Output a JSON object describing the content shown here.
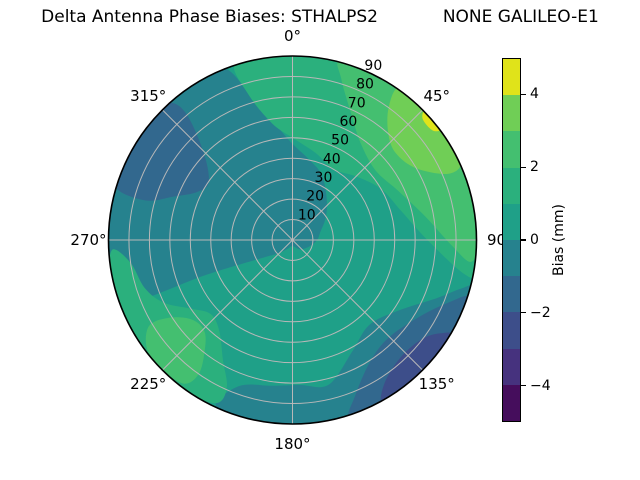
{
  "title": "Delta Antenna Phase Biases: STHALPS2            NONE GALILEO-E1",
  "chart_data": {
    "type": "polar_contour",
    "title": "Delta Antenna Phase Biases: STHALPS2            NONE GALILEO-E1",
    "theta_labels": [
      "0°",
      "45°",
      "90",
      "135°",
      "180°",
      "225°",
      "270°",
      "315°"
    ],
    "theta_degrees": [
      0,
      45,
      90,
      135,
      180,
      225,
      270,
      315
    ],
    "r_tick_labels": [
      "10",
      "20",
      "30",
      "40",
      "50",
      "60",
      "70",
      "80",
      "90"
    ],
    "r_ticks": [
      10,
      20,
      30,
      40,
      50,
      60,
      70,
      80,
      90
    ],
    "r_max": 90,
    "radial_label_angle_deg": 24,
    "grid": true,
    "grid_color": "#b8b8b8",
    "colorbar": {
      "label": "Bias (mm)",
      "range": [
        -5,
        5
      ],
      "ticks": [
        4,
        2,
        0,
        -2,
        -4
      ],
      "tick_labels": [
        "4",
        "2",
        "0",
        "−2",
        "−4"
      ],
      "position": "right"
    },
    "bins": [
      {
        "range": [
          -5,
          -4
        ],
        "color": "#450d5c"
      },
      {
        "range": [
          -4,
          -3
        ],
        "color": "#46327e"
      },
      {
        "range": [
          -3,
          -2
        ],
        "color": "#3d4e8a"
      },
      {
        "range": [
          -2,
          -1
        ],
        "color": "#32688e"
      },
      {
        "range": [
          -1,
          0
        ],
        "color": "#26828e"
      },
      {
        "range": [
          0,
          1
        ],
        "color": "#1fa088"
      },
      {
        "range": [
          1,
          2
        ],
        "color": "#2bb07d"
      },
      {
        "range": [
          2,
          3
        ],
        "color": "#44bf70"
      },
      {
        "range": [
          3,
          4
        ],
        "color": "#70ce56"
      },
      {
        "range": [
          4,
          5
        ],
        "color": "#e0e31a"
      }
    ],
    "base_bin": 5,
    "regions": [
      {
        "bin": 4,
        "value_range_mm": "-1 to 0",
        "points": [
          [
            250,
            91
          ],
          [
            265,
            91
          ],
          [
            280,
            91
          ],
          [
            295,
            91
          ],
          [
            310,
            91
          ],
          [
            325,
            91
          ],
          [
            338,
            91
          ],
          [
            345,
            70
          ],
          [
            353,
            55
          ],
          [
            0,
            47
          ],
          [
            12,
            40
          ],
          [
            24,
            35
          ],
          [
            38,
            27
          ],
          [
            55,
            20
          ],
          [
            75,
            14
          ],
          [
            90,
            12
          ],
          [
            110,
            9
          ],
          [
            140,
            6
          ],
          [
            180,
            3
          ],
          [
            210,
            5
          ],
          [
            228,
            10
          ],
          [
            240,
            18
          ],
          [
            248,
            45
          ]
        ]
      },
      {
        "bin": 4,
        "value_range_mm": "-1 to 0",
        "points": [
          [
            105,
            91
          ],
          [
            118,
            91
          ],
          [
            131,
            91
          ],
          [
            144,
            91
          ],
          [
            157,
            91
          ],
          [
            170,
            91
          ],
          [
            183,
            91
          ],
          [
            196,
            91
          ],
          [
            205,
            89
          ],
          [
            200,
            76
          ],
          [
            188,
            72
          ],
          [
            177,
            71
          ],
          [
            166,
            73
          ],
          [
            152,
            62
          ],
          [
            138,
            56
          ],
          [
            124,
            62
          ],
          [
            112,
            76
          ],
          [
            106,
            86
          ]
        ]
      },
      {
        "bin": 3,
        "value_range_mm": "-2 to -1",
        "points": [
          [
            108,
            91
          ],
          [
            120,
            91
          ],
          [
            135,
            91
          ],
          [
            150,
            91
          ],
          [
            162,
            91
          ],
          [
            158,
            82
          ],
          [
            148,
            71
          ],
          [
            136,
            67
          ],
          [
            122,
            72
          ],
          [
            112,
            82
          ]
        ]
      },
      {
        "bin": 2,
        "value_range_mm": "-3 to -2",
        "points": [
          [
            121,
            91
          ],
          [
            131,
            91
          ],
          [
            141,
            91
          ],
          [
            151,
            91
          ],
          [
            147,
            83
          ],
          [
            137,
            78
          ],
          [
            127,
            80
          ],
          [
            122,
            86
          ]
        ]
      },
      {
        "bin": 3,
        "value_range_mm": "-2 to -1",
        "points": [
          [
            287,
            91
          ],
          [
            297,
            91
          ],
          [
            307,
            91
          ],
          [
            317,
            91
          ],
          [
            320,
            82
          ],
          [
            315,
            62
          ],
          [
            305,
            50
          ],
          [
            297,
            52
          ],
          [
            290,
            62
          ],
          [
            285,
            75
          ]
        ]
      },
      {
        "bin": 6,
        "value_range_mm": "1 to 2",
        "points": [
          [
            342,
            91
          ],
          [
            355,
            91
          ],
          [
            10,
            91
          ],
          [
            25,
            91
          ],
          [
            40,
            91
          ],
          [
            55,
            91
          ],
          [
            70,
            91
          ],
          [
            85,
            91
          ],
          [
            100,
            91
          ],
          [
            101,
            85
          ],
          [
            90,
            66
          ],
          [
            75,
            55
          ],
          [
            60,
            50
          ],
          [
            45,
            44
          ],
          [
            30,
            40
          ],
          [
            15,
            44
          ],
          [
            0,
            50
          ],
          [
            350,
            58
          ],
          [
            343,
            75
          ]
        ]
      },
      {
        "bin": 7,
        "value_range_mm": "2 to 3",
        "points": [
          [
            15,
            91
          ],
          [
            30,
            91
          ],
          [
            45,
            91
          ],
          [
            60,
            91
          ],
          [
            75,
            91
          ],
          [
            90,
            91
          ],
          [
            97,
            88
          ],
          [
            92,
            78
          ],
          [
            80,
            66
          ],
          [
            65,
            57
          ],
          [
            50,
            53
          ],
          [
            35,
            58
          ],
          [
            25,
            68
          ],
          [
            17,
            82
          ]
        ]
      },
      {
        "bin": 8,
        "value_range_mm": "3 to 4",
        "points": [
          [
            35,
            91
          ],
          [
            45,
            91
          ],
          [
            55,
            91
          ],
          [
            65,
            91
          ],
          [
            67,
            83
          ],
          [
            60,
            70
          ],
          [
            50,
            66
          ],
          [
            42,
            70
          ],
          [
            36,
            80
          ]
        ]
      },
      {
        "bin": 9,
        "value_range_mm": "4 to 5",
        "points": [
          [
            46,
            91
          ],
          [
            53,
            91
          ],
          [
            52,
            87
          ],
          [
            47,
            87
          ]
        ]
      },
      {
        "bin": 6,
        "value_range_mm": "1 to 2",
        "points": [
          [
            205,
            88
          ],
          [
            215,
            91
          ],
          [
            225,
            91
          ],
          [
            235,
            91
          ],
          [
            245,
            91
          ],
          [
            252,
            91
          ],
          [
            260,
            91
          ],
          [
            267,
            88
          ],
          [
            262,
            80
          ],
          [
            252,
            76
          ],
          [
            244,
            70
          ],
          [
            236,
            60
          ],
          [
            228,
            54
          ],
          [
            219,
            57
          ],
          [
            210,
            68
          ],
          [
            204,
            79
          ]
        ]
      },
      {
        "bin": 7,
        "value_range_mm": "2 to 3",
        "points": [
          [
            217,
            88
          ],
          [
            225,
            90
          ],
          [
            233,
            89
          ],
          [
            239,
            82
          ],
          [
            238,
            72
          ],
          [
            232,
            63
          ],
          [
            224,
            62
          ],
          [
            218,
            70
          ],
          [
            215,
            80
          ]
        ]
      }
    ]
  }
}
